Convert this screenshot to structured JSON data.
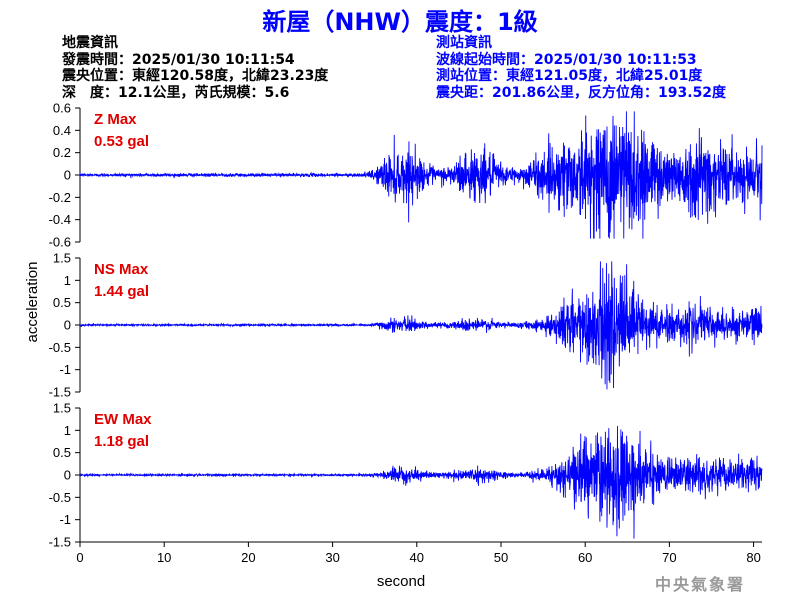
{
  "header": {
    "title": "新屋（NHW）震度：1級"
  },
  "earthquake_info": {
    "heading": "地震資訊",
    "origin_time": "發震時間：2025/01/30 10:11:54",
    "epicenter": "震央位置：東經120.58度，北緯23.23度",
    "depth_magnitude": "深　度：12.1公里，芮氏規模：5.6"
  },
  "station_info": {
    "heading": "測站資訊",
    "wave_start": "波線起始時間：2025/01/30 10:11:53",
    "location": "測站位置：東經121.05度，北緯25.01度",
    "distance": "震央距：201.86公里，反方位角：193.52度"
  },
  "credit": "中央氣象署",
  "colors": {
    "title": "#0000ff",
    "trace": "#0000ff",
    "max_label": "#e00000",
    "info_right": "#0000ff"
  },
  "chart_data": {
    "type": "line",
    "xlabel": "second",
    "ylabel": "acceleration",
    "xlim": [
      0,
      81
    ],
    "x_ticks": [
      "0",
      "10",
      "20",
      "30",
      "40",
      "50",
      "60",
      "70",
      "80"
    ],
    "panels": [
      {
        "name": "Z",
        "max_title": "Z Max",
        "max_value": "0.53 gal",
        "ylim": [
          -0.6,
          0.6
        ],
        "y_ticks": [
          "0.6",
          "0.4",
          "0.2",
          "0",
          "-0.2",
          "-0.4",
          "-0.6"
        ],
        "noise": 0.01,
        "p_onset": 33.5,
        "p_amp": 0.1,
        "s_onset": 56,
        "s_peak_time": 63,
        "s_amp": 0.22,
        "coda_amp": 0.1,
        "peak_pos": 0.53,
        "peak_neg": -0.38
      },
      {
        "name": "NS",
        "max_title": "NS Max",
        "max_value": "1.44 gal",
        "ylim": [
          -1.5,
          1.5
        ],
        "y_ticks": [
          "1.5",
          "1",
          "0.5",
          "0",
          "-0.5",
          "-1",
          "-1.5"
        ],
        "noise": 0.015,
        "p_onset": 33.5,
        "p_amp": 0.06,
        "s_onset": 55,
        "s_peak_time": 62.5,
        "s_amp": 0.55,
        "coda_amp": 0.2,
        "peak_pos": 1.15,
        "peak_neg": -1.44
      },
      {
        "name": "EW",
        "max_title": "EW Max",
        "max_value": "1.18 gal",
        "ylim": [
          -1.5,
          1.5
        ],
        "y_ticks": [
          "1.5",
          "1",
          "0.5",
          "0",
          "-0.5",
          "-1",
          "-1.5"
        ],
        "noise": 0.015,
        "p_onset": 33.5,
        "p_amp": 0.06,
        "s_onset": 56,
        "s_peak_time": 62.5,
        "s_amp": 0.5,
        "coda_amp": 0.2,
        "peak_pos": 1.05,
        "peak_neg": -1.18
      }
    ]
  }
}
